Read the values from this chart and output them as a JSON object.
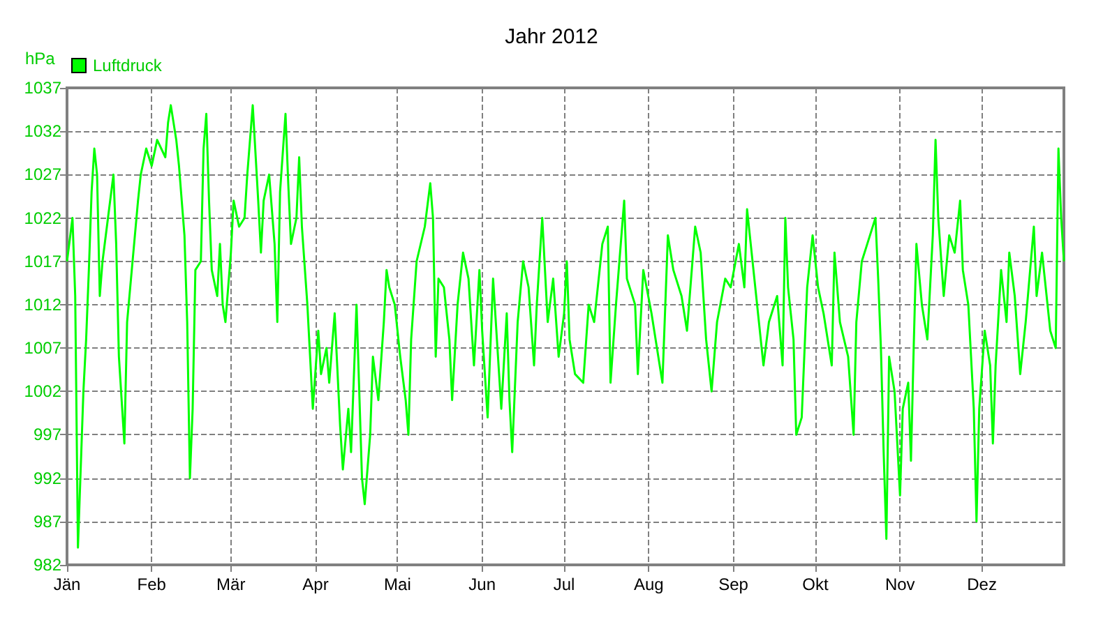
{
  "chart_data": {
    "type": "line",
    "title": "Jahr 2012",
    "ylabel": "hPa",
    "legend": "top left",
    "grid": true,
    "marker": "none",
    "line_style": "solid",
    "xlim": [
      "2012-01-01",
      "2012-12-31"
    ],
    "ylim": [
      982,
      1037
    ],
    "xticks": [
      {
        "value": "2012-01-01",
        "label": "Jän"
      },
      {
        "value": "2012-02-01",
        "label": "Feb"
      },
      {
        "value": "2012-03-01",
        "label": "Mär"
      },
      {
        "value": "2012-04-01",
        "label": "Apr"
      },
      {
        "value": "2012-05-01",
        "label": "Mai"
      },
      {
        "value": "2012-06-01",
        "label": "Jun"
      },
      {
        "value": "2012-07-01",
        "label": "Jul"
      },
      {
        "value": "2012-08-01",
        "label": "Aug"
      },
      {
        "value": "2012-09-01",
        "label": "Sep"
      },
      {
        "value": "2012-10-01",
        "label": "Okt"
      },
      {
        "value": "2012-11-01",
        "label": "Nov"
      },
      {
        "value": "2012-12-01",
        "label": "Dez"
      }
    ],
    "yticks": [
      982,
      987,
      992,
      997,
      1002,
      1007,
      1012,
      1017,
      1022,
      1027,
      1032,
      1037
    ],
    "x": [
      "2012-01-01",
      "2012-01-03",
      "2012-01-04",
      "2012-01-05",
      "2012-01-07",
      "2012-01-08",
      "2012-01-09",
      "2012-01-10",
      "2012-01-11",
      "2012-01-12",
      "2012-01-13",
      "2012-01-14",
      "2012-01-16",
      "2012-01-18",
      "2012-01-19",
      "2012-01-20",
      "2012-01-22",
      "2012-01-23",
      "2012-01-25",
      "2012-01-27",
      "2012-01-28",
      "2012-01-30",
      "2012-02-01",
      "2012-02-03",
      "2012-02-06",
      "2012-02-07",
      "2012-02-08",
      "2012-02-10",
      "2012-02-11",
      "2012-02-13",
      "2012-02-14",
      "2012-02-15",
      "2012-02-16",
      "2012-02-17",
      "2012-02-19",
      "2012-02-20",
      "2012-02-21",
      "2012-02-22",
      "2012-02-23",
      "2012-02-25",
      "2012-02-26",
      "2012-02-27",
      "2012-02-28",
      "2012-03-01",
      "2012-03-02",
      "2012-03-04",
      "2012-03-06",
      "2012-03-07",
      "2012-03-09",
      "2012-03-11",
      "2012-03-12",
      "2012-03-13",
      "2012-03-15",
      "2012-03-17",
      "2012-03-18",
      "2012-03-19",
      "2012-03-21",
      "2012-03-22",
      "2012-03-23",
      "2012-03-25",
      "2012-03-26",
      "2012-03-27",
      "2012-03-29",
      "2012-03-30",
      "2012-03-31",
      "2012-04-02",
      "2012-04-03",
      "2012-04-05",
      "2012-04-06",
      "2012-04-08",
      "2012-04-10",
      "2012-04-11",
      "2012-04-13",
      "2012-04-14",
      "2012-04-16",
      "2012-04-18",
      "2012-04-19",
      "2012-04-21",
      "2012-04-22",
      "2012-04-24",
      "2012-04-26",
      "2012-04-27",
      "2012-04-28",
      "2012-04-30",
      "2012-05-02",
      "2012-05-04",
      "2012-05-05",
      "2012-05-06",
      "2012-05-08",
      "2012-05-11",
      "2012-05-13",
      "2012-05-14",
      "2012-05-15",
      "2012-05-16",
      "2012-05-18",
      "2012-05-20",
      "2012-05-21",
      "2012-05-23",
      "2012-05-25",
      "2012-05-27",
      "2012-05-29",
      "2012-05-31",
      "2012-06-01",
      "2012-06-03",
      "2012-06-05",
      "2012-06-08",
      "2012-06-10",
      "2012-06-11",
      "2012-06-12",
      "2012-06-14",
      "2012-06-16",
      "2012-06-18",
      "2012-06-20",
      "2012-06-21",
      "2012-06-23",
      "2012-06-25",
      "2012-06-27",
      "2012-06-29",
      "2012-07-01",
      "2012-07-02",
      "2012-07-03",
      "2012-07-05",
      "2012-07-08",
      "2012-07-10",
      "2012-07-12",
      "2012-07-15",
      "2012-07-17",
      "2012-07-18",
      "2012-07-20",
      "2012-07-23",
      "2012-07-24",
      "2012-07-27",
      "2012-07-28",
      "2012-07-30",
      "2012-08-02",
      "2012-08-04",
      "2012-08-06",
      "2012-08-08",
      "2012-08-10",
      "2012-08-13",
      "2012-08-15",
      "2012-08-18",
      "2012-08-20",
      "2012-08-22",
      "2012-08-24",
      "2012-08-26",
      "2012-08-29",
      "2012-08-31",
      "2012-09-03",
      "2012-09-05",
      "2012-09-06",
      "2012-09-09",
      "2012-09-12",
      "2012-09-14",
      "2012-09-17",
      "2012-09-19",
      "2012-09-20",
      "2012-09-21",
      "2012-09-23",
      "2012-09-24",
      "2012-09-26",
      "2012-09-28",
      "2012-09-30",
      "2012-10-02",
      "2012-10-04",
      "2012-10-07",
      "2012-10-08",
      "2012-10-10",
      "2012-10-13",
      "2012-10-15",
      "2012-10-16",
      "2012-10-18",
      "2012-10-20",
      "2012-10-23",
      "2012-10-24",
      "2012-10-25",
      "2012-10-26",
      "2012-10-27",
      "2012-10-28",
      "2012-10-30",
      "2012-11-01",
      "2012-11-02",
      "2012-11-04",
      "2012-11-05",
      "2012-11-06",
      "2012-11-07",
      "2012-11-09",
      "2012-11-11",
      "2012-11-13",
      "2012-11-14",
      "2012-11-15",
      "2012-11-17",
      "2012-11-19",
      "2012-11-21",
      "2012-11-23",
      "2012-11-24",
      "2012-11-26",
      "2012-11-28",
      "2012-11-29",
      "2012-11-30",
      "2012-12-02",
      "2012-12-04",
      "2012-12-05",
      "2012-12-06",
      "2012-12-08",
      "2012-12-10",
      "2012-12-11",
      "2012-12-13",
      "2012-12-15",
      "2012-12-17",
      "2012-12-20",
      "2012-12-21",
      "2012-12-23",
      "2012-12-26",
      "2012-12-28",
      "2012-12-29",
      "2012-12-30",
      "2012-12-31"
    ],
    "series": [
      {
        "name": "Luftdruck",
        "color": "#00ff00",
        "values": [
          1017,
          1022,
          1013,
          984,
          1002,
          1008,
          1016,
          1025,
          1030,
          1027,
          1013,
          1017,
          1022,
          1027,
          1019,
          1006,
          996,
          1010,
          1017,
          1024,
          1027,
          1030,
          1028,
          1031,
          1029,
          1033,
          1035,
          1031,
          1028,
          1020,
          1010,
          992,
          1000,
          1016,
          1017,
          1030,
          1034,
          1024,
          1016,
          1013,
          1019,
          1012,
          1010,
          1018,
          1024,
          1021,
          1022,
          1027,
          1035,
          1024,
          1018,
          1024,
          1027,
          1019,
          1010,
          1025,
          1034,
          1026,
          1019,
          1022,
          1029,
          1021,
          1012,
          1006,
          1000,
          1009,
          1004,
          1007,
          1003,
          1011,
          998,
          993,
          1000,
          995,
          1012,
          992,
          989,
          997,
          1006,
          1001,
          1010,
          1016,
          1014,
          1012,
          1006,
          1001,
          997,
          1008,
          1017,
          1021,
          1026,
          1022,
          1006,
          1015,
          1014,
          1008,
          1001,
          1012,
          1018,
          1015,
          1005,
          1016,
          1009,
          999,
          1015,
          1000,
          1011,
          1001,
          995,
          1010,
          1017,
          1014,
          1005,
          1012,
          1022,
          1010,
          1015,
          1006,
          1011,
          1017,
          1008,
          1004,
          1003,
          1012,
          1010,
          1019,
          1021,
          1003,
          1012,
          1024,
          1015,
          1012,
          1004,
          1016,
          1011,
          1007,
          1003,
          1020,
          1016,
          1013,
          1009,
          1021,
          1018,
          1008,
          1002,
          1010,
          1015,
          1014,
          1019,
          1014,
          1023,
          1014,
          1005,
          1010,
          1013,
          1005,
          1022,
          1014,
          1008,
          997,
          999,
          1014,
          1020,
          1014,
          1011,
          1005,
          1018,
          1010,
          1006,
          997,
          1010,
          1017,
          1019,
          1022,
          1015,
          1007,
          995,
          985,
          1006,
          1002,
          990,
          1000,
          1003,
          994,
          1007,
          1019,
          1012,
          1008,
          1020,
          1031,
          1022,
          1013,
          1020,
          1018,
          1024,
          1016,
          1012,
          1000,
          987,
          1000,
          1009,
          1005,
          996,
          1005,
          1016,
          1010,
          1018,
          1013,
          1004,
          1010,
          1021,
          1013,
          1018,
          1009,
          1007,
          1030,
          1022,
          1017
        ]
      }
    ]
  }
}
